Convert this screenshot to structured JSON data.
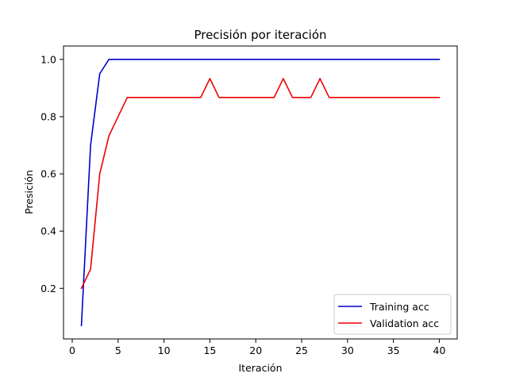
{
  "chart_data": {
    "type": "line",
    "title": "Precisión por iteración",
    "xlabel": "Iteración",
    "ylabel": "Presición",
    "xlim": [
      -0.95,
      41.95
    ],
    "ylim": [
      0.0233,
      1.0467
    ],
    "xticks": [
      0,
      5,
      10,
      15,
      20,
      25,
      30,
      35,
      40
    ],
    "yticks": [
      0.2,
      0.4,
      0.6,
      0.8,
      1.0
    ],
    "xtick_labels": [
      "0",
      "5",
      "10",
      "15",
      "20",
      "25",
      "30",
      "35",
      "40"
    ],
    "ytick_labels": [
      "0.2",
      "0.4",
      "0.6",
      "0.8",
      "1.0"
    ],
    "grid": false,
    "legend_position": "lower-right",
    "x": [
      1,
      2,
      3,
      4,
      5,
      6,
      7,
      8,
      9,
      10,
      11,
      12,
      13,
      14,
      15,
      16,
      17,
      18,
      19,
      20,
      21,
      22,
      23,
      24,
      25,
      26,
      27,
      28,
      29,
      30,
      31,
      32,
      33,
      34,
      35,
      36,
      37,
      38,
      39,
      40
    ],
    "series": [
      {
        "name": "Training acc",
        "color": "#0000cc",
        "values": [
          0.07,
          0.7,
          0.95,
          1,
          1,
          1,
          1,
          1,
          1,
          1,
          1,
          1,
          1,
          1,
          1,
          1,
          1,
          1,
          1,
          1,
          1,
          1,
          1,
          1,
          1,
          1,
          1,
          1,
          1,
          1,
          1,
          1,
          1,
          1,
          1,
          1,
          1,
          1,
          1,
          1
        ]
      },
      {
        "name": "Validation acc",
        "color": "#ee0000",
        "values": [
          0.2,
          0.267,
          0.6,
          0.733,
          0.8,
          0.867,
          0.867,
          0.867,
          0.867,
          0.867,
          0.867,
          0.867,
          0.867,
          0.867,
          0.933,
          0.867,
          0.867,
          0.867,
          0.867,
          0.867,
          0.867,
          0.867,
          0.933,
          0.867,
          0.867,
          0.867,
          0.933,
          0.867,
          0.867,
          0.867,
          0.867,
          0.867,
          0.867,
          0.867,
          0.867,
          0.867,
          0.867,
          0.867,
          0.867,
          0.867
        ]
      }
    ]
  }
}
